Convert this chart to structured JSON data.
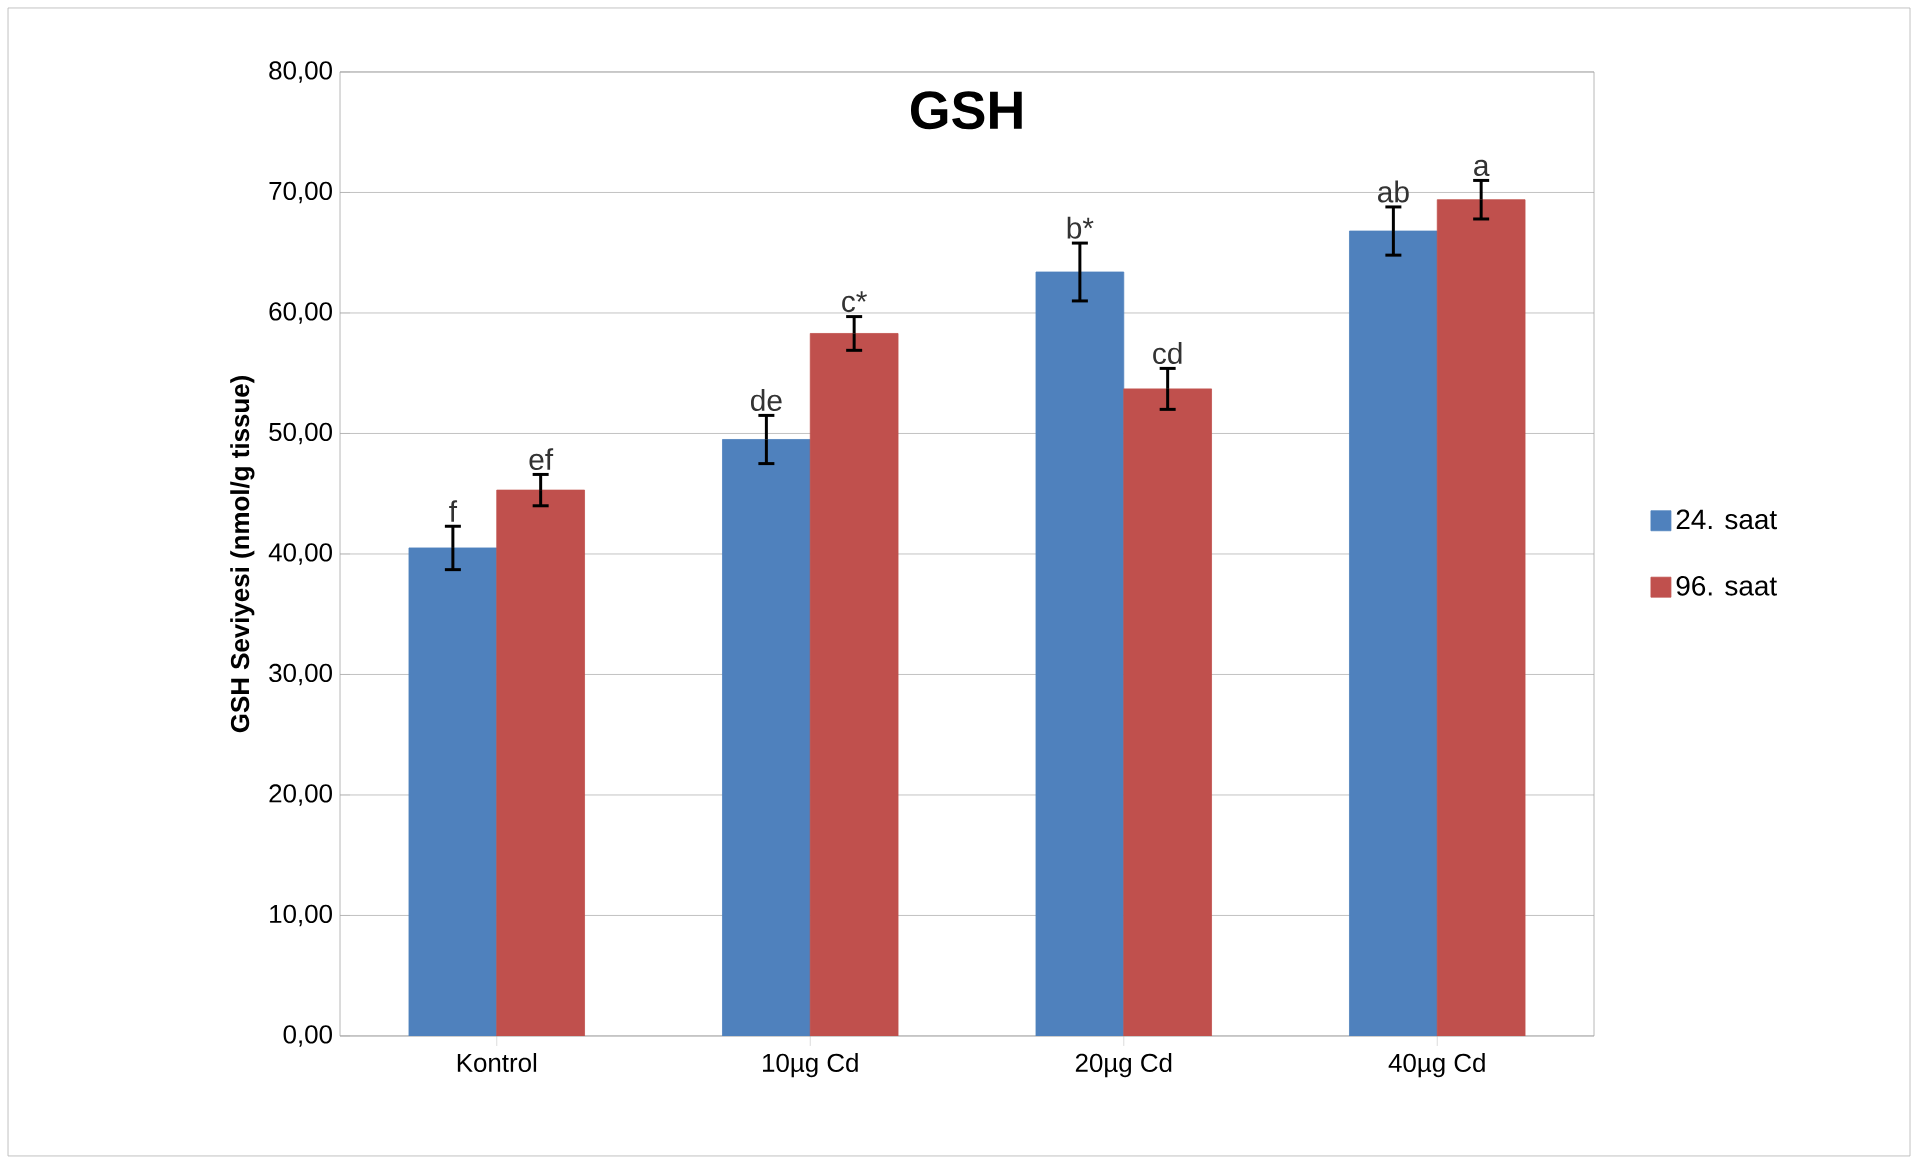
{
  "chart_data": {
    "type": "bar",
    "title": "GSH",
    "ylabel": "GSH Seviyesi (nmol/g tissue)",
    "categories": [
      "Kontrol",
      "10µg Cd",
      "20µg Cd",
      "40µg Cd"
    ],
    "series": [
      {
        "name": "24. saat",
        "color": "#4f81bd",
        "values": [
          40.5,
          49.5,
          63.4,
          66.8
        ],
        "errors": [
          1.8,
          2.0,
          2.4,
          2.0
        ],
        "value_labels": [
          "f",
          "de",
          "b*",
          "ab"
        ]
      },
      {
        "name": "96. saat",
        "color": "#c0504d",
        "values": [
          45.3,
          58.3,
          53.7,
          69.4
        ],
        "errors": [
          1.3,
          1.4,
          1.7,
          1.6
        ],
        "value_labels": [
          "ef",
          "c*",
          "cd",
          "a"
        ]
      }
    ],
    "ylim": [
      0,
      80
    ],
    "yticks": [
      {
        "value": 0,
        "label": "0,00"
      },
      {
        "value": 10,
        "label": "10,00"
      },
      {
        "value": 20,
        "label": "20,00"
      },
      {
        "value": 30,
        "label": "30,00"
      },
      {
        "value": 40,
        "label": "40,00"
      },
      {
        "value": 50,
        "label": "50,00"
      },
      {
        "value": 60,
        "label": "60,00"
      },
      {
        "value": 70,
        "label": "70,00"
      },
      {
        "value": 80,
        "label": "80,00"
      }
    ],
    "grid": "y",
    "legend": "right"
  }
}
